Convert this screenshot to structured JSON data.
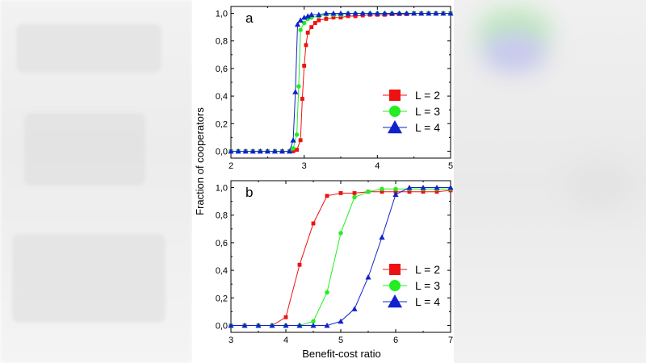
{
  "chart_data": [
    {
      "type": "line",
      "panel_label": "a",
      "xlim": [
        2,
        5
      ],
      "ylim": [
        -0.05,
        1.05
      ],
      "x_ticks": [
        2,
        3,
        4,
        5
      ],
      "x_tick_labels": [
        "2",
        "3",
        "4",
        "5"
      ],
      "y_ticks": [
        0.0,
        0.2,
        0.4,
        0.6,
        0.8,
        1.0
      ],
      "y_tick_labels": [
        "0,0",
        "0,2",
        "0,4",
        "0,6",
        "0,8",
        "1,0"
      ],
      "legend_position": "lower-right",
      "series": [
        {
          "name": "L = 2",
          "color": "#ee1111",
          "marker": "square",
          "x": [
            2.0,
            2.1,
            2.2,
            2.3,
            2.4,
            2.5,
            2.6,
            2.7,
            2.8,
            2.85,
            2.9,
            2.95,
            2.975,
            3.0,
            3.025,
            3.05,
            3.1,
            3.15,
            3.2,
            3.3,
            3.4,
            3.5,
            3.6,
            3.7,
            3.8,
            3.9,
            4.0,
            4.1,
            4.2,
            4.3,
            4.4,
            4.5,
            4.6,
            4.7,
            4.8,
            4.9,
            5.0
          ],
          "y": [
            0,
            0,
            0,
            0,
            0,
            0,
            0,
            0,
            0,
            0,
            0.01,
            0.08,
            0.38,
            0.62,
            0.77,
            0.86,
            0.9,
            0.93,
            0.95,
            0.96,
            0.97,
            0.97,
            0.98,
            0.98,
            0.985,
            0.99,
            0.99,
            0.99,
            0.995,
            0.995,
            0.995,
            1,
            1,
            1,
            1,
            1,
            1
          ]
        },
        {
          "name": "L = 3",
          "color": "#22ee22",
          "marker": "circle",
          "x": [
            2.0,
            2.1,
            2.2,
            2.3,
            2.4,
            2.5,
            2.6,
            2.7,
            2.8,
            2.85,
            2.9,
            2.925,
            2.95,
            3.0,
            3.05,
            3.1,
            3.2,
            3.3,
            3.4,
            3.5,
            3.6,
            3.7,
            3.8,
            3.9,
            4.0,
            4.1,
            4.2,
            4.3,
            4.4,
            4.5,
            4.6,
            4.7,
            4.8,
            4.9,
            5.0
          ],
          "y": [
            0,
            0,
            0,
            0,
            0,
            0,
            0,
            0,
            0,
            0.02,
            0.12,
            0.47,
            0.88,
            0.93,
            0.96,
            0.97,
            0.98,
            0.99,
            0.99,
            0.99,
            1,
            1,
            1,
            1,
            1,
            1,
            1,
            1,
            1,
            1,
            1,
            1,
            1,
            1,
            1
          ]
        },
        {
          "name": "L = 4",
          "color": "#1122cc",
          "marker": "triangle",
          "x": [
            2.0,
            2.1,
            2.2,
            2.3,
            2.4,
            2.5,
            2.6,
            2.7,
            2.8,
            2.85,
            2.88,
            2.91,
            2.95,
            3.0,
            3.05,
            3.1,
            3.2,
            3.3,
            3.4,
            3.5,
            3.6,
            3.7,
            3.8,
            3.9,
            4.0,
            4.1,
            4.2,
            4.3,
            4.4,
            4.5,
            4.6,
            4.7,
            4.8,
            4.9,
            5.0
          ],
          "y": [
            0,
            0,
            0,
            0,
            0,
            0,
            0,
            0,
            0,
            0.08,
            0.43,
            0.92,
            0.95,
            0.97,
            0.98,
            0.99,
            0.99,
            1,
            1,
            1,
            1,
            1,
            1,
            1,
            1,
            1,
            1,
            1,
            1,
            1,
            1,
            1,
            1,
            1,
            1
          ]
        }
      ]
    },
    {
      "type": "line",
      "panel_label": "b",
      "xlabel": "Benefit-cost ratio",
      "xlim": [
        3,
        7
      ],
      "ylim": [
        -0.05,
        1.05
      ],
      "x_ticks": [
        3,
        4,
        5,
        6,
        7
      ],
      "x_tick_labels": [
        "3",
        "4",
        "5",
        "6",
        "7"
      ],
      "y_ticks": [
        0.0,
        0.2,
        0.4,
        0.6,
        0.8,
        1.0
      ],
      "y_tick_labels": [
        "0,0",
        "0,2",
        "0,4",
        "0,6",
        "0,8",
        "1,0"
      ],
      "legend_position": "lower-right",
      "series": [
        {
          "name": "L = 2",
          "color": "#ee1111",
          "marker": "square",
          "x": [
            3.0,
            3.25,
            3.5,
            3.75,
            4.0,
            4.25,
            4.5,
            4.75,
            5.0,
            5.25,
            5.5,
            5.75,
            6.0,
            6.25,
            6.5,
            6.75,
            7.0
          ],
          "y": [
            0,
            0,
            0,
            0,
            0.06,
            0.44,
            0.74,
            0.94,
            0.96,
            0.96,
            0.97,
            0.97,
            0.97,
            0.97,
            0.97,
            0.97,
            0.98
          ]
        },
        {
          "name": "L = 3",
          "color": "#22ee22",
          "marker": "circle",
          "x": [
            3.0,
            3.25,
            3.5,
            3.75,
            4.0,
            4.25,
            4.5,
            4.75,
            5.0,
            5.25,
            5.5,
            5.75,
            6.0,
            6.25,
            6.5,
            6.75,
            7.0
          ],
          "y": [
            0,
            0,
            0,
            0,
            0,
            0,
            0.03,
            0.24,
            0.67,
            0.93,
            0.97,
            0.99,
            0.99,
            0.99,
            0.99,
            0.99,
            0.99
          ]
        },
        {
          "name": "L = 4",
          "color": "#1122cc",
          "marker": "triangle",
          "x": [
            3.0,
            3.25,
            3.5,
            3.75,
            4.0,
            4.25,
            4.5,
            4.75,
            5.0,
            5.25,
            5.5,
            5.75,
            6.0,
            6.25,
            6.5,
            6.75,
            7.0
          ],
          "y": [
            0,
            0,
            0,
            0,
            0,
            0,
            0,
            0,
            0.03,
            0.12,
            0.35,
            0.64,
            0.95,
            1,
            1,
            1,
            1
          ]
        }
      ]
    }
  ],
  "shared_ylabel": "Fraction of cooperators"
}
